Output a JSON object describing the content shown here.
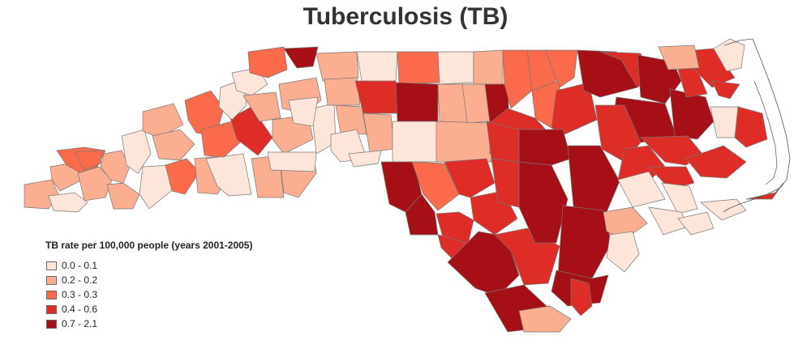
{
  "title": "Tuberculosis (TB)",
  "legend": {
    "title": "TB rate per 100,000 people (years 2001-2005)",
    "items": [
      {
        "label": "0.0 - 0.1",
        "color": "#fee5d9"
      },
      {
        "label": "0.2 - 0.2",
        "color": "#fcae91"
      },
      {
        "label": "0.3 - 0.3",
        "color": "#fb6a4a"
      },
      {
        "label": "0.4 - 0.6",
        "color": "#de2d26"
      },
      {
        "label": "0.7 - 2.1",
        "color": "#a50f15"
      }
    ]
  },
  "map": {
    "region": "North Carolina counties",
    "border_color": "#777777",
    "coast_color": "#555555"
  }
}
